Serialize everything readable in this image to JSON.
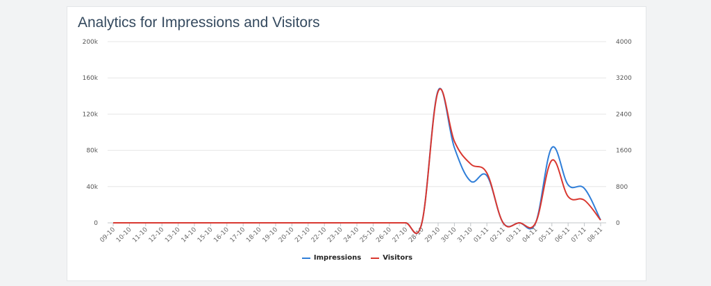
{
  "chart_data": {
    "type": "line",
    "title": "Analytics for Impressions and Visitors",
    "categories": [
      "09-10",
      "10-10",
      "11-10",
      "12-10",
      "13-10",
      "14-10",
      "15-10",
      "16-10",
      "17-10",
      "18-10",
      "19-10",
      "20-10",
      "21-10",
      "22-10",
      "23-10",
      "24-10",
      "25-10",
      "26-10",
      "27-10",
      "28-10",
      "29-10",
      "30-10",
      "31-10",
      "01-11",
      "02-11",
      "03-11",
      "04-11",
      "05-11",
      "06-11",
      "07-11",
      "08-11"
    ],
    "y_left": {
      "ticks": [
        "0",
        "40k",
        "80k",
        "120k",
        "160k",
        "200k"
      ],
      "range": [
        0,
        200000
      ]
    },
    "y_right": {
      "ticks": [
        "0",
        "800",
        "1600",
        "2400",
        "3200",
        "4000"
      ],
      "range": [
        0,
        4000
      ]
    },
    "grid": true,
    "legend_position": "bottom-center",
    "series": [
      {
        "name": "Impressions",
        "axis": "left",
        "color": "#2f7ed8",
        "values": [
          0,
          0,
          0,
          0,
          0,
          0,
          0,
          0,
          0,
          0,
          0,
          0,
          0,
          0,
          0,
          0,
          0,
          0,
          0,
          0,
          146000,
          83000,
          46000,
          52000,
          0,
          0,
          0,
          83000,
          42000,
          38000,
          3000
        ]
      },
      {
        "name": "Visitors",
        "axis": "right",
        "color": "#d9372f",
        "values": [
          0,
          0,
          0,
          0,
          0,
          0,
          0,
          0,
          0,
          0,
          0,
          0,
          0,
          0,
          0,
          0,
          0,
          0,
          0,
          0,
          2900,
          1800,
          1300,
          1100,
          0,
          0,
          0,
          1380,
          580,
          500,
          60
        ]
      }
    ]
  }
}
